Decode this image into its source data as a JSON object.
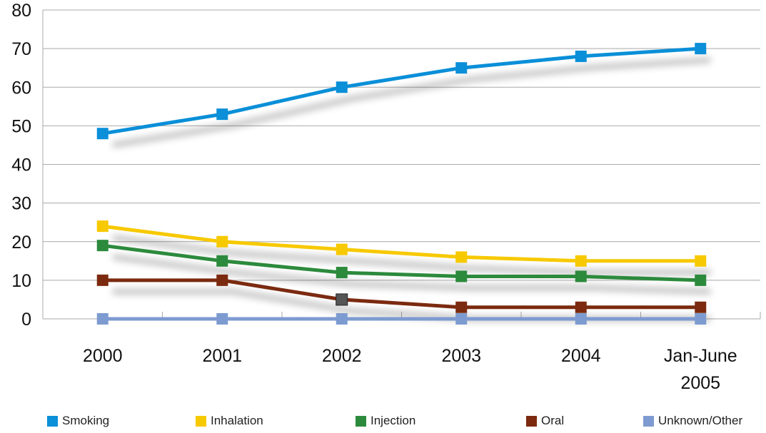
{
  "chart_data": {
    "type": "line",
    "title": "",
    "xlabel": "",
    "ylabel": "",
    "categories": [
      "2000",
      "2001",
      "2002",
      "2003",
      "2004",
      "Jan-June 2005"
    ],
    "category_lines": [
      [
        "2000"
      ],
      [
        "2001"
      ],
      [
        "2002"
      ],
      [
        "2003"
      ],
      [
        "2004"
      ],
      [
        "Jan-June",
        "2005"
      ]
    ],
    "ylim": [
      0,
      80
    ],
    "yticks": [
      "0",
      "10",
      "20",
      "30",
      "40",
      "50",
      "60",
      "70",
      "80"
    ],
    "grid": true,
    "legend_position": "bottom",
    "series": [
      {
        "name": "Smoking",
        "color": "#0a8fd8",
        "values": [
          48,
          53,
          60,
          65,
          68,
          70
        ]
      },
      {
        "name": "Inhalation",
        "color": "#f7c900",
        "values": [
          24,
          20,
          18,
          16,
          15,
          15
        ]
      },
      {
        "name": "Injection",
        "color": "#2c8a3c",
        "values": [
          19,
          15,
          12,
          11,
          11,
          10
        ]
      },
      {
        "name": "Oral",
        "color": "#7b2a0f",
        "values": [
          10,
          10,
          5,
          3,
          3,
          3
        ]
      },
      {
        "name": "Unknown/Other",
        "color": "#7d9bd0",
        "values": [
          0,
          0,
          0,
          0,
          0,
          0
        ]
      }
    ],
    "highlighted_point": {
      "series": "Oral",
      "category": "2002",
      "color": "#555555"
    }
  }
}
